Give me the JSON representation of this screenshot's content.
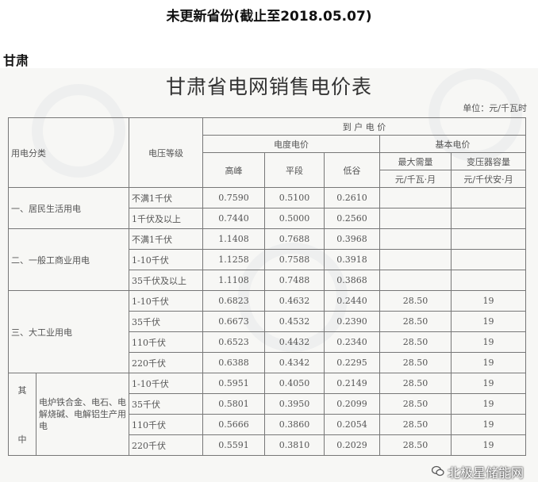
{
  "article": {
    "heading": "未更新省份(截止至2018.05.07)",
    "province": "甘肃"
  },
  "document": {
    "title": "甘肃省电网销售电价表",
    "unit": "单位：元/千瓦时",
    "headers": {
      "category": "用电分类",
      "voltage": "电压等级",
      "delivered_price": "到 户 电 价",
      "energy_price": "电度电价",
      "basic_price": "基本电价",
      "peak": "高峰",
      "flat": "平段",
      "valley": "低谷",
      "max_demand": "最大需量",
      "max_demand_unit": "元/千瓦·月",
      "transformer": "变压器容量",
      "transformer_unit": "元/千伏安·月"
    },
    "groups": [
      {
        "category": "一、居民生活用电",
        "rows": [
          {
            "voltage": "不满1千伏",
            "peak": "0.7590",
            "flat": "0.5100",
            "valley": "0.2610",
            "demand": "",
            "capacity": ""
          },
          {
            "voltage": "1千伏及以上",
            "peak": "0.7440",
            "flat": "0.5000",
            "valley": "0.2560",
            "demand": "",
            "capacity": ""
          }
        ]
      },
      {
        "category": "二、一般工商业用电",
        "rows": [
          {
            "voltage": "不满1千伏",
            "peak": "1.1408",
            "flat": "0.7688",
            "valley": "0.3968",
            "demand": "",
            "capacity": ""
          },
          {
            "voltage": "1-10千伏",
            "peak": "1.1258",
            "flat": "0.7588",
            "valley": "0.3918",
            "demand": "",
            "capacity": ""
          },
          {
            "voltage": "35千伏及以上",
            "peak": "1.1108",
            "flat": "0.7488",
            "valley": "0.3868",
            "demand": "",
            "capacity": ""
          }
        ]
      },
      {
        "category": "三、大工业用电",
        "rows": [
          {
            "voltage": "1-10千伏",
            "peak": "0.6823",
            "flat": "0.4632",
            "valley": "0.2440",
            "demand": "28.50",
            "capacity": "19"
          },
          {
            "voltage": "35千伏",
            "peak": "0.6673",
            "flat": "0.4532",
            "valley": "0.2390",
            "demand": "28.50",
            "capacity": "19"
          },
          {
            "voltage": "110千伏",
            "peak": "0.6523",
            "flat": "0.4432",
            "valley": "0.2340",
            "demand": "28.50",
            "capacity": "19"
          },
          {
            "voltage": "220千伏",
            "peak": "0.6388",
            "flat": "0.4342",
            "valley": "0.2295",
            "demand": "28.50",
            "capacity": "19"
          }
        ]
      },
      {
        "prefix_top": "其",
        "prefix_bottom": "中",
        "category": "电炉铁合金、电石、电解烧碱、电解铝生产用电",
        "rows": [
          {
            "voltage": "1-10千伏",
            "peak": "0.5951",
            "flat": "0.4050",
            "valley": "0.2149",
            "demand": "28.50",
            "capacity": "19"
          },
          {
            "voltage": "35千伏",
            "peak": "0.5801",
            "flat": "0.3950",
            "valley": "0.2099",
            "demand": "28.50",
            "capacity": "19"
          },
          {
            "voltage": "110千伏",
            "peak": "0.5666",
            "flat": "0.3860",
            "valley": "0.2054",
            "demand": "28.50",
            "capacity": "19"
          },
          {
            "voltage": "220千伏",
            "peak": "0.5591",
            "flat": "0.3810",
            "valley": "0.2029",
            "demand": "28.50",
            "capacity": "19"
          }
        ]
      }
    ],
    "watermark": "北极星储能网",
    "watermark_icon": "wechat-icon"
  }
}
